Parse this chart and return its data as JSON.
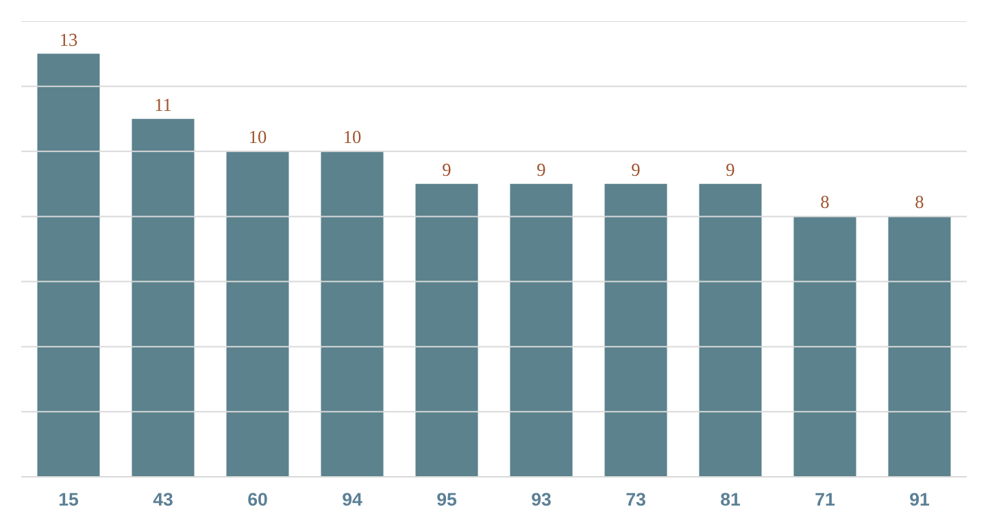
{
  "chart_data": {
    "type": "bar",
    "categories": [
      "15",
      "43",
      "60",
      "94",
      "95",
      "93",
      "73",
      "81",
      "71",
      "91"
    ],
    "values": [
      13,
      11,
      10,
      10,
      9,
      9,
      9,
      9,
      8,
      8
    ],
    "color": "#5b828d",
    "data_labels": true,
    "ylim": [
      0,
      14
    ],
    "yticks": [
      {
        "value": 0,
        "label": null
      },
      {
        "value": 2,
        "label": null
      },
      {
        "value": 4,
        "label": null
      },
      {
        "value": 6,
        "label": null
      },
      {
        "value": 8,
        "label": null
      },
      {
        "value": 10,
        "label": null
      },
      {
        "value": 12,
        "label": null
      },
      {
        "value": 14,
        "label": null
      }
    ],
    "grid": "y",
    "tick_labels": "x"
  }
}
